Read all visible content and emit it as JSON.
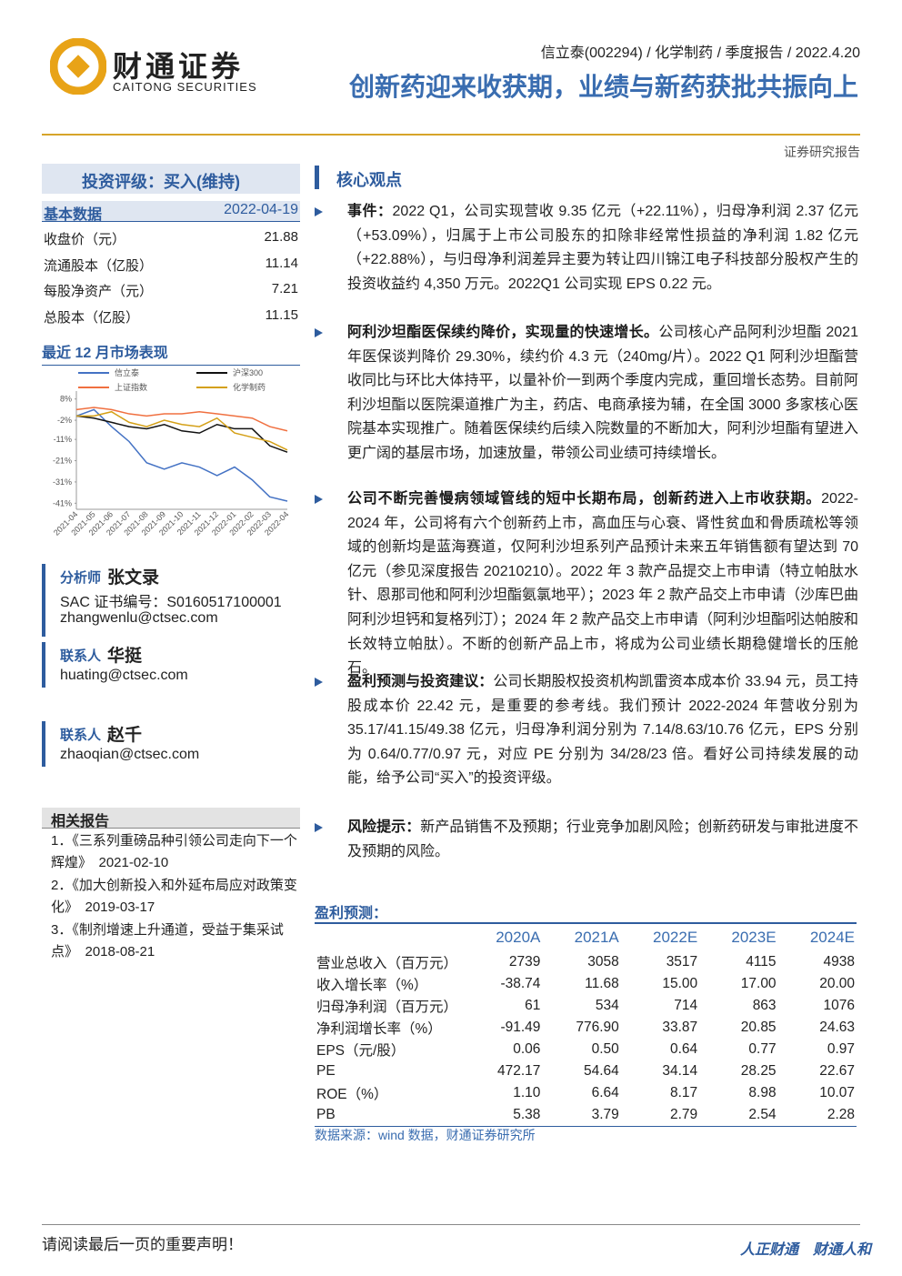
{
  "header": {
    "logo_cn": "财通证券",
    "logo_en": "CAITONG SECURITIES",
    "breadcrumb": "信立泰(002294) / 化学制药 / 季度报告 / 2022.4.20",
    "title": "创新药迎来收获期，业绩与新药获批共振向上",
    "report_type": "证券研究报告"
  },
  "sidebar": {
    "rating": "投资评级：买入(维持)",
    "basic_data": {
      "title": "基本数据",
      "date": "2022-04-19",
      "rows": [
        [
          "收盘价（元）",
          "21.88"
        ],
        [
          "流通股本（亿股）",
          "11.14"
        ],
        [
          "每股净资产（元）",
          "7.21"
        ],
        [
          "总股本（亿股）",
          "11.15"
        ]
      ]
    },
    "market_title": "最近 12 月市场表现",
    "contacts": [
      {
        "role": "分析师",
        "name": "张文录",
        "lines": [
          "SAC 证书编号：S0160517100001",
          "zhangwenlu@ctsec.com"
        ]
      },
      {
        "role": "联系人",
        "name": "华挺",
        "lines": [
          "huating@ctsec.com"
        ]
      },
      {
        "role": "联系人",
        "name": "赵千",
        "lines": [
          "zhaoqian@ctsec.com"
        ]
      }
    ],
    "related": {
      "title": "相关报告",
      "items": [
        "1．《三系列重磅品种引领公司走向下一个辉煌》　2021-02-10",
        "2．《加大创新投入和外延布局应对政策变化》　2019-03-17",
        "3．《制剂增速上升通道，受益于集采试点》　2018-08-21"
      ]
    }
  },
  "chart_data": {
    "type": "line",
    "categories": [
      "2021-04",
      "2021-05",
      "2021-06",
      "2021-07",
      "2021-08",
      "2021-09",
      "2021-10",
      "2021-11",
      "2021-12",
      "2022-01",
      "2022-02",
      "2022-03",
      "2022-04"
    ],
    "series": [
      {
        "name": "信立泰",
        "color": "#4472c4",
        "values": [
          0,
          3,
          -5,
          -12,
          -22,
          -25,
          -22,
          -24,
          -28,
          -24,
          -30,
          -38,
          -40
        ]
      },
      {
        "name": "沪深300",
        "color": "#111111",
        "values": [
          0,
          -1,
          -3,
          -5,
          -6,
          -4,
          -7,
          -8,
          -4,
          -6,
          -6,
          -14,
          -17
        ]
      },
      {
        "name": "上证指数",
        "color": "#f07040",
        "values": [
          3,
          4,
          3,
          1,
          0,
          1,
          1,
          2,
          1,
          0,
          -1,
          -5,
          -7
        ]
      },
      {
        "name": "化学制药",
        "color": "#d4a017",
        "values": [
          0,
          0,
          2,
          -3,
          -5,
          -2,
          -4,
          -5,
          -1,
          -8,
          -10,
          -12,
          -16
        ]
      }
    ],
    "ylim": [
      -43,
      10
    ],
    "yticks": [
      {
        "value": 8,
        "label": "8%"
      },
      {
        "value": -2,
        "label": "-2%"
      },
      {
        "value": -11,
        "label": "-11%"
      },
      {
        "value": -21,
        "label": "-21%"
      },
      {
        "value": -31,
        "label": "-31%"
      },
      {
        "value": -41,
        "label": "-41%"
      }
    ]
  },
  "main": {
    "section_title": "核心观点",
    "points": [
      {
        "lead": "事件：",
        "text": "2022 Q1，公司实现营收 9.35 亿元（+22.11%），归母净利润 2.37 亿元（+53.09%），归属于上市公司股东的扣除非经常性损益的净利润 1.82 亿元（+22.88%），与归母净利润差异主要为转让四川锦江电子科技部分股权产生的投资收益约 4,350 万元。2022Q1 公司实现 EPS 0.22 元。"
      },
      {
        "lead": "阿利沙坦酯医保续约降价，实现量的快速增长。",
        "text": "公司核心产品阿利沙坦酯 2021 年医保谈判降价 29.30%，续约价 4.3 元（240mg/片）。2022 Q1 阿利沙坦酯营收同比与环比大体持平，以量补价一到两个季度内完成，重回增长态势。目前阿利沙坦酯以医院渠道推广为主，药店、电商承接为辅，在全国 3000 多家核心医院基本实现推广。随着医保续约后续入院数量的不断加大，阿利沙坦酯有望进入更广阔的基层市场，加速放量，带领公司业绩可持续增长。"
      },
      {
        "lead": "公司不断完善慢病领域管线的短中长期布局，创新药进入上市收获期。",
        "text": "2022-2024 年，公司将有六个创新药上市，高血压与心衰、肾性贫血和骨质疏松等领域的创新均是蓝海赛道，仅阿利沙坦系列产品预计未来五年销售额有望达到 70 亿元（参见深度报告 20210210）。2022 年 3 款产品提交上市申请（特立帕肽水针、恩那司他和阿利沙坦酯氨氯地平）；2023 年 2 款产品交上市申请（沙库巴曲阿利沙坦钙和复格列汀）；2024 年 2 款产品交上市申请（阿利沙坦酯吲达帕胺和长效特立帕肽）。不断的创新产品上市，将成为公司业绩长期稳健增长的压舱石。"
      },
      {
        "lead": "盈利预测与投资建议：",
        "text": "公司长期股权投资机构凯雷资本成本价 33.94 元，员工持股成本价 22.42 元，是重要的参考线。我们预计 2022-2024 年营收分别为 35.17/41.15/49.38 亿元，归母净利润分别为 7.14/8.63/10.76 亿元，EPS 分别为 0.64/0.77/0.97 元，对应 PE 分别为 34/28/23 倍。看好公司持续发展的动能，给予公司“买入”的投资评级。"
      },
      {
        "lead": "风险提示：",
        "text": "新产品销售不及预期；行业竞争加剧风险；创新药研发与审批进度不及预期的风险。"
      }
    ],
    "forecast": {
      "title": "盈利预测：",
      "columns": [
        "2020A",
        "2021A",
        "2022E",
        "2023E",
        "2024E"
      ],
      "rows": [
        {
          "label": "营业总收入（百万元）",
          "values": [
            "2739",
            "3058",
            "3517",
            "4115",
            "4938"
          ]
        },
        {
          "label": "收入增长率（%）",
          "values": [
            "-38.74",
            "11.68",
            "15.00",
            "17.00",
            "20.00"
          ]
        },
        {
          "label": "归母净利润（百万元）",
          "values": [
            "61",
            "534",
            "714",
            "863",
            "1076"
          ]
        },
        {
          "label": "净利润增长率（%）",
          "values": [
            "-91.49",
            "776.90",
            "33.87",
            "20.85",
            "24.63"
          ]
        },
        {
          "label": "EPS（元/股）",
          "values": [
            "0.06",
            "0.50",
            "0.64",
            "0.77",
            "0.97"
          ]
        },
        {
          "label": "PE",
          "values": [
            "472.17",
            "54.64",
            "34.14",
            "28.25",
            "22.67"
          ]
        },
        {
          "label": "ROE（%）",
          "values": [
            "1.10",
            "6.64",
            "8.17",
            "8.98",
            "10.07"
          ]
        },
        {
          "label": "PB",
          "values": [
            "5.38",
            "3.79",
            "2.79",
            "2.54",
            "2.28"
          ]
        }
      ],
      "source": "数据来源：wind 数据，财通证券研究所"
    }
  },
  "footer": {
    "left": "请阅读最后一页的重要声明！",
    "right": "人正财通　财通人和"
  }
}
